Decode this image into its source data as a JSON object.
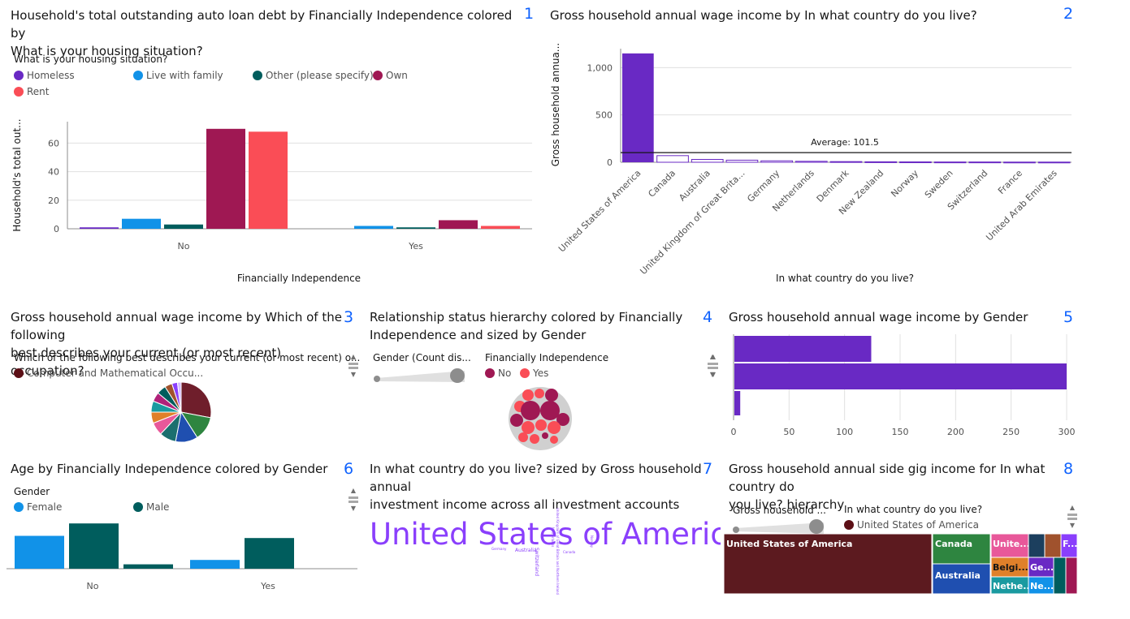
{
  "panels": {
    "p1": {
      "number": "1",
      "title_line1": "Household's total outstanding auto loan debt by Financially Independence colored by",
      "title_line2": "What is your housing situation?",
      "legend_title": "What is your housing situation?",
      "legend": [
        {
          "label": "Homeless",
          "color": "#6929c4"
        },
        {
          "label": "Live with family",
          "color": "#1192e8"
        },
        {
          "label": "Other (please specify)",
          "color": "#005d5d"
        },
        {
          "label": "Own",
          "color": "#9f1853"
        },
        {
          "label": "Rent",
          "color": "#fa4d56"
        }
      ]
    },
    "p2": {
      "number": "2",
      "title": "Gross household annual wage income by In what country do you live?"
    },
    "p3": {
      "number": "3",
      "title_line1": "Gross household annual wage income by Which of the following",
      "title_line2": "best describes your current (or most recent) occupation?",
      "legend_title": "Which of the following best describes your current (or most recent) o...",
      "legend_item": "Computer and Mathematical Occu..."
    },
    "p4": {
      "number": "4",
      "title_line1": "Relationship status hierarchy colored by Financially",
      "title_line2": "Independence and sized by Gender",
      "slider_label": "Gender (Count dis...",
      "legend_title": "Financially Independence",
      "legend": [
        {
          "label": "No",
          "color": "#9f1853"
        },
        {
          "label": "Yes",
          "color": "#fa4d56"
        }
      ]
    },
    "p5": {
      "number": "5",
      "title": "Gross household annual wage income by Gender"
    },
    "p6": {
      "number": "6",
      "title": "Age by Financially Independence colored by Gender",
      "legend_title": "Gender",
      "legend": [
        {
          "label": "Female",
          "color": "#1192e8"
        },
        {
          "label": "Male",
          "color": "#005d5d"
        }
      ]
    },
    "p7": {
      "number": "7",
      "title_line1": "In what country do you live? sized by Gross household annual",
      "title_line2": "investment income across all investment accounts",
      "big_word": "United States of America",
      "small_words": [
        "Australia",
        "Canada",
        "Switzerland",
        "Germany",
        "Norway",
        "Netherlands",
        "United Kingdom of Great Britain and Northern Ireland"
      ]
    },
    "p8": {
      "number": "8",
      "title_line1": "Gross household annual side gig income for In what country do",
      "title_line2": "you live? hierarchy",
      "slider_label": "Gross household ...",
      "legend_title": "In what country do you live?",
      "legend_item": "United States of America",
      "tiles": {
        "usa": "United States of America",
        "canada": "Canada",
        "australia": "Australia",
        "unite": "Unite...",
        "belgi": "Belgi...",
        "nethe": "Nethe...",
        "ge": "Ge...",
        "ne": "Ne...",
        "f": "F..."
      }
    }
  },
  "chart_data": [
    {
      "type": "bar",
      "xlabel": "Financially Independence",
      "ylabel": "Household's total out...",
      "categories": [
        "No",
        "Yes"
      ],
      "ylim": [
        0,
        75
      ],
      "yticks": [
        0,
        20,
        40,
        60
      ],
      "series": [
        {
          "name": "Homeless",
          "color": "#6929c4",
          "values": [
            1,
            0
          ]
        },
        {
          "name": "Live with family",
          "color": "#1192e8",
          "values": [
            7,
            2
          ]
        },
        {
          "name": "Other (please specify)",
          "color": "#005d5d",
          "values": [
            3,
            1
          ]
        },
        {
          "name": "Own",
          "color": "#9f1853",
          "values": [
            70,
            6
          ]
        },
        {
          "name": "Rent",
          "color": "#fa4d56",
          "values": [
            68,
            2
          ]
        }
      ]
    },
    {
      "type": "bar",
      "xlabel": "In what country do you live?",
      "ylabel": "Gross household annua...",
      "categories": [
        "United States of America",
        "Canada",
        "Australia",
        "United Kingdom of Great Brita...",
        "Germany",
        "Netherlands",
        "Denmark",
        "New Zealand",
        "Norway",
        "Sweden",
        "Switzerland",
        "France",
        "United Arab Emirates"
      ],
      "values": [
        1150,
        70,
        30,
        22,
        15,
        10,
        7,
        5,
        4,
        3,
        3,
        2,
        2
      ],
      "ylim": [
        0,
        1200
      ],
      "yticks": [
        "0",
        "500",
        "1,000"
      ],
      "yticks_values": [
        0,
        500,
        1000
      ],
      "average_label": "Average: 101.5",
      "average": 101.5
    },
    {
      "type": "pie",
      "values": [
        28,
        13,
        12,
        9,
        7,
        6,
        6,
        5,
        5,
        4,
        3,
        2
      ],
      "colors": [
        "#6f1e2b",
        "#2e8540",
        "#1f4fb0",
        "#1b6f6f",
        "#e8589a",
        "#e0802a",
        "#1a9aa0",
        "#b0227a",
        "#005d5d",
        "#a0522d",
        "#8a3ffc",
        "#d4bbff"
      ]
    },
    {
      "type": "bar",
      "orientation": "horizontal",
      "categories": [
        "",
        "",
        ""
      ],
      "values": [
        124,
        300,
        6
      ],
      "xlim": [
        0,
        300
      ],
      "xticks": [
        0,
        50,
        100,
        150,
        200,
        250,
        300
      ]
    },
    {
      "type": "bar",
      "categories": [
        "No",
        "Yes"
      ],
      "series": [
        {
          "name": "Female",
          "color": "#1192e8",
          "values": [
            45,
            12
          ]
        },
        {
          "name": "Male",
          "color": "#005d5d",
          "values": [
            62,
            42
          ]
        },
        {
          "name": "",
          "color": "#005d5d",
          "values": [
            6,
            0
          ]
        }
      ]
    }
  ]
}
